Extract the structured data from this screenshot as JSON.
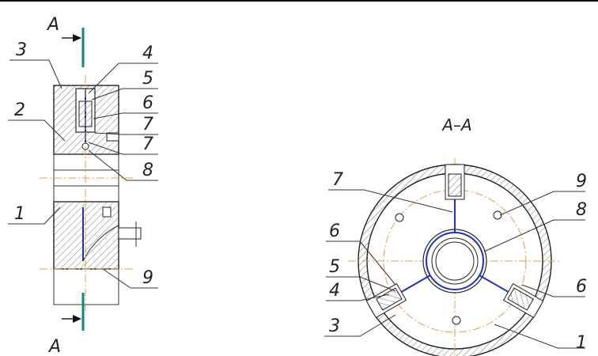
{
  "section_marks": [
    "A",
    "A"
  ],
  "left_view": {
    "callouts": [
      "3",
      "4",
      "5",
      "2",
      "6",
      "7",
      "7",
      "8",
      "1",
      "9"
    ]
  },
  "right_view": {
    "title": "A–A",
    "callouts": [
      "7",
      "9",
      "8",
      "6",
      "5",
      "4",
      "6",
      "3",
      "1"
    ]
  }
}
